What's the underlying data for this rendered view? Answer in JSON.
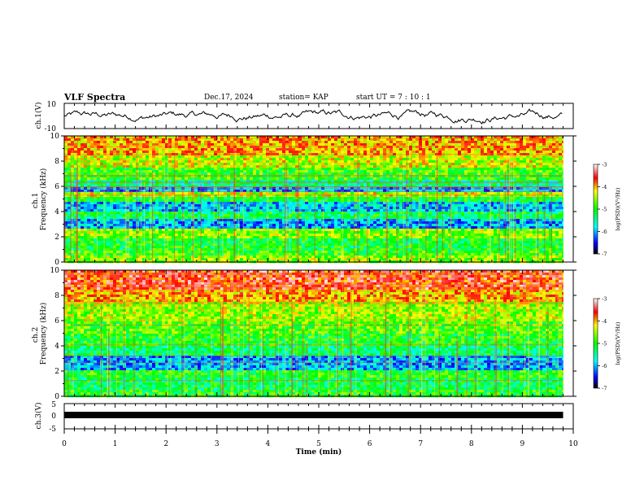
{
  "header": {
    "title": "VLF Spectra",
    "date": "Dec.17, 2024",
    "station": "station= KAP",
    "start": "start  UT =   7 : 10 : 1"
  },
  "chart_data": [
    {
      "type": "line",
      "name": "ch1-waveform",
      "ylabel": "ch.1(V)",
      "ylim": [
        -10,
        10
      ],
      "yticks": [
        "10",
        "-10"
      ],
      "xlim": [
        0,
        10
      ]
    },
    {
      "type": "heatmap",
      "name": "ch1-spectrogram",
      "ylabel": "ch.1\nFrequency (kHz)",
      "ylim": [
        0,
        10
      ],
      "yticks": [
        "0",
        "2",
        "4",
        "6",
        "8",
        "10"
      ],
      "xlim": [
        0,
        10
      ],
      "data_end_min": 9.8,
      "colorbar": {
        "label": "log(PSD)(V²/Hz)",
        "range": [
          -7,
          -3
        ],
        "ticks": [
          "-3",
          "-4",
          "-5",
          "-6",
          "-7"
        ]
      },
      "bands_kHz": [
        {
          "from": 0.0,
          "to": 0.5,
          "level": -4.6
        },
        {
          "from": 0.5,
          "to": 1.0,
          "level": -4.9
        },
        {
          "from": 1.0,
          "to": 1.8,
          "level": -5.1
        },
        {
          "from": 1.8,
          "to": 2.6,
          "level": -4.6
        },
        {
          "from": 2.6,
          "to": 3.4,
          "level": -6.0
        },
        {
          "from": 3.4,
          "to": 4.0,
          "level": -5.2
        },
        {
          "from": 4.0,
          "to": 4.8,
          "level": -5.9
        },
        {
          "from": 4.8,
          "to": 5.2,
          "level": -5.1
        },
        {
          "from": 5.2,
          "to": 5.5,
          "level": -4.4
        },
        {
          "from": 5.5,
          "to": 6.0,
          "level": -6.0
        },
        {
          "from": 6.0,
          "to": 6.5,
          "level": -5.4
        },
        {
          "from": 6.5,
          "to": 7.5,
          "level": -4.9
        },
        {
          "from": 7.5,
          "to": 8.5,
          "level": -4.4
        },
        {
          "from": 8.5,
          "to": 10.0,
          "level": -4.0
        }
      ]
    },
    {
      "type": "heatmap",
      "name": "ch2-spectrogram",
      "ylabel": "ch.2\nFrequency (kHz)",
      "ylim": [
        0,
        10
      ],
      "yticks": [
        "0",
        "2",
        "4",
        "6",
        "8",
        "10"
      ],
      "xlim": [
        0,
        10
      ],
      "data_end_min": 9.8,
      "colorbar": {
        "label": "log(PSD)(V²/Hz)",
        "range": [
          -7,
          -3
        ],
        "ticks": [
          "-3",
          "-4",
          "-5",
          "-6",
          "-7"
        ]
      },
      "bands_kHz": [
        {
          "from": 0.0,
          "to": 0.5,
          "level": -5.0
        },
        {
          "from": 0.5,
          "to": 1.5,
          "level": -5.2
        },
        {
          "from": 1.5,
          "to": 2.0,
          "level": -5.0
        },
        {
          "from": 2.0,
          "to": 3.2,
          "level": -6.0
        },
        {
          "from": 3.2,
          "to": 4.0,
          "level": -5.3
        },
        {
          "from": 4.0,
          "to": 5.0,
          "level": -5.0
        },
        {
          "from": 5.0,
          "to": 6.0,
          "level": -4.8
        },
        {
          "from": 6.0,
          "to": 7.5,
          "level": -4.5
        },
        {
          "from": 7.5,
          "to": 8.5,
          "level": -4.0
        },
        {
          "from": 8.5,
          "to": 10.0,
          "level": -3.6
        }
      ]
    },
    {
      "type": "line",
      "name": "ch3-waveform",
      "ylabel": "ch.3(V)",
      "ylim": [
        -5,
        5
      ],
      "yticks": [
        "5",
        "0",
        "-5"
      ],
      "xlim": [
        0,
        10
      ],
      "xlabel": "Time (min)",
      "xticks": [
        "0",
        "1",
        "2",
        "3",
        "4",
        "5",
        "6",
        "7",
        "8",
        "9",
        "10"
      ]
    }
  ]
}
